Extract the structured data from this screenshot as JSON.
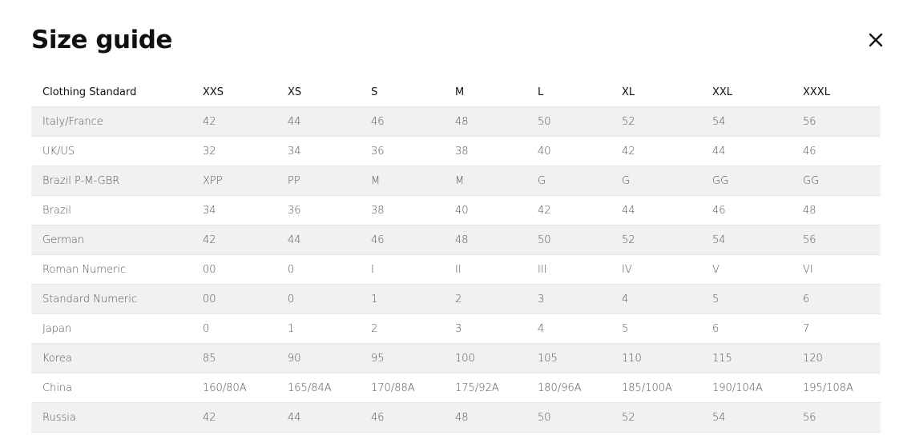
{
  "title": "Size guide",
  "close_icon": "close-x-icon",
  "colors": {
    "stripe": "#f1f1f1",
    "text": "#555555",
    "heading": "#111111"
  },
  "table": {
    "headers": [
      "Clothing Standard",
      "XXS",
      "XS",
      "S",
      "M",
      "L",
      "XL",
      "XXL",
      "XXXL"
    ],
    "rows": [
      [
        "Italy/France",
        "42",
        "44",
        "46",
        "48",
        "50",
        "52",
        "54",
        "56"
      ],
      [
        "UK/US",
        "32",
        "34",
        "36",
        "38",
        "40",
        "42",
        "44",
        "46"
      ],
      [
        "Brazil P-M-GBR",
        "XPP",
        "PP",
        "M",
        "M",
        "G",
        "G",
        "GG",
        "GG"
      ],
      [
        "Brazil",
        "34",
        "36",
        "38",
        "40",
        "42",
        "44",
        "46",
        "48"
      ],
      [
        "German",
        "42",
        "44",
        "46",
        "48",
        "50",
        "52",
        "54",
        "56"
      ],
      [
        "Roman Numeric",
        "00",
        "0",
        "I",
        "II",
        "III",
        "IV",
        "V",
        "VI"
      ],
      [
        "Standard Numeric",
        "00",
        "0",
        "1",
        "2",
        "3",
        "4",
        "5",
        "6"
      ],
      [
        "Japan",
        "0",
        "1",
        "2",
        "3",
        "4",
        "5",
        "6",
        "7"
      ],
      [
        "Korea",
        "85",
        "90",
        "95",
        "100",
        "105",
        "110",
        "115",
        "120"
      ],
      [
        "China",
        "160/80A",
        "165/84A",
        "170/88A",
        "175/92A",
        "180/96A",
        "185/100A",
        "190/104A",
        "195/108A"
      ],
      [
        "Russia",
        "42",
        "44",
        "46",
        "48",
        "50",
        "52",
        "54",
        "56"
      ]
    ]
  }
}
